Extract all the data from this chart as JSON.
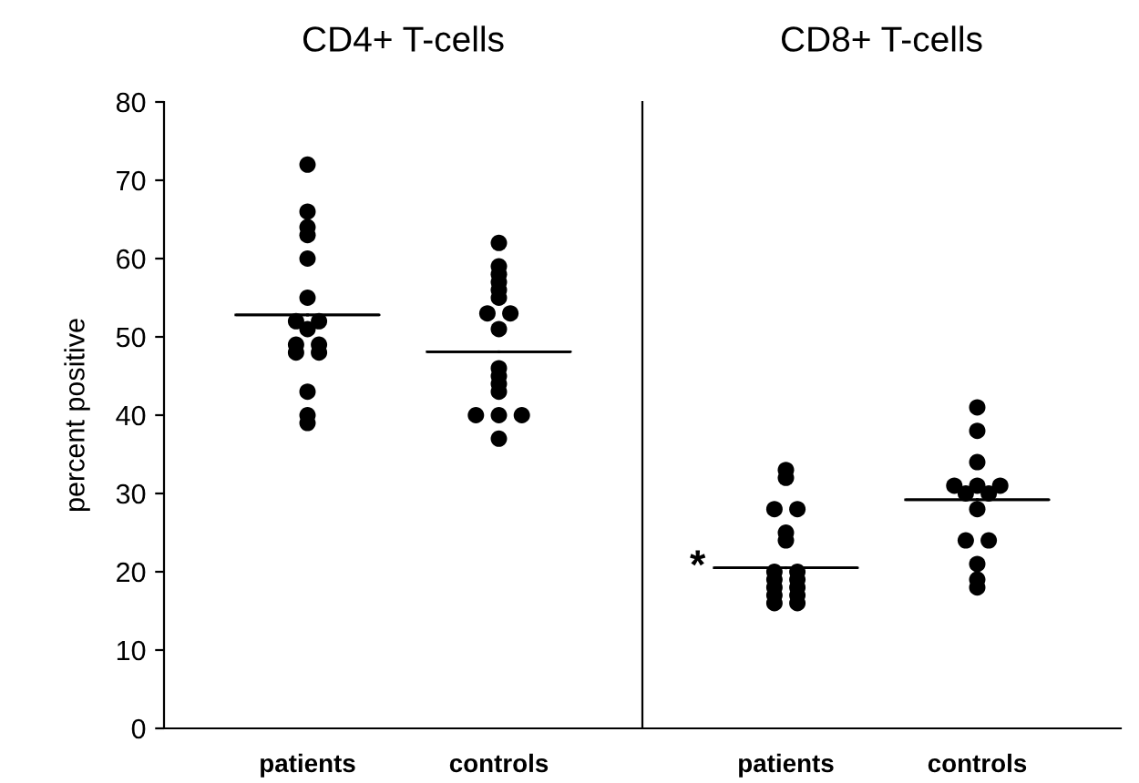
{
  "chart_data": [
    {
      "type": "scatter",
      "title": "CD4+ T-cells",
      "ylabel": "percent positive",
      "categories": [
        "patients",
        "controls"
      ],
      "ylim": [
        0,
        80
      ],
      "yticks": [
        0,
        10,
        20,
        30,
        40,
        50,
        60,
        70,
        80
      ],
      "marker": "circle",
      "series": [
        {
          "x": [
            "patients",
            "patients",
            "patients",
            "patients",
            "patients",
            "patients",
            "patients",
            "patients",
            "patients",
            "patients",
            "patients",
            "patients",
            "patients",
            "patients",
            "patients",
            "patients"
          ],
          "color": "#000000",
          "values": [
            72,
            66,
            64,
            63,
            60,
            55,
            52,
            52,
            51,
            49,
            49,
            48,
            48,
            43,
            40,
            39
          ]
        },
        {
          "x": [
            "controls",
            "controls",
            "controls",
            "controls",
            "controls",
            "controls",
            "controls",
            "controls",
            "controls",
            "controls",
            "controls",
            "controls",
            "controls",
            "controls",
            "controls",
            "controls",
            "controls"
          ],
          "color": "#000000",
          "values": [
            62,
            59,
            58,
            57,
            56,
            55,
            53,
            53,
            51,
            46,
            45,
            44,
            43,
            40,
            40,
            40,
            37
          ]
        },
        {
          "type": "box",
          "color": "#000000",
          "boxes": [
            {
              "low": 52.8,
              "q1": 52.8,
              "median": 52.8,
              "q3": 52.8,
              "high": 52.8
            },
            {
              "low": 48.1,
              "q1": 48.1,
              "median": 48.1,
              "q3": 48.1,
              "high": 48.1
            }
          ]
        }
      ]
    },
    {
      "type": "scatter",
      "title": "CD8+ T-cells",
      "categories": [
        "patients",
        "controls"
      ],
      "ylim": [
        0,
        80
      ],
      "tick_labels": "x",
      "marker": "circle",
      "annotations": [
        {
          "text": "*",
          "x": "patients",
          "y": 20.5
        }
      ],
      "series": [
        {
          "x": [
            "patients",
            "patients",
            "patients",
            "patients",
            "patients",
            "patients",
            "patients",
            "patients",
            "patients",
            "patients",
            "patients",
            "patients",
            "patients",
            "patients",
            "patients",
            "patients"
          ],
          "color": "#000000",
          "values": [
            33,
            32,
            28,
            28,
            25,
            24,
            20,
            20,
            19,
            19,
            18,
            18,
            17,
            17,
            16,
            16
          ]
        },
        {
          "x": [
            "controls",
            "controls",
            "controls",
            "controls",
            "controls",
            "controls",
            "controls",
            "controls",
            "controls",
            "controls",
            "controls",
            "controls",
            "controls",
            "controls"
          ],
          "color": "#000000",
          "values": [
            41,
            38,
            34,
            31,
            31,
            31,
            30,
            30,
            28,
            24,
            24,
            21,
            19,
            18
          ]
        },
        {
          "type": "box",
          "color": "#000000",
          "boxes": [
            {
              "low": 20.5,
              "q1": 20.5,
              "median": 20.5,
              "q3": 20.5,
              "high": 20.5
            },
            {
              "low": 29.2,
              "q1": 29.2,
              "median": 29.2,
              "q3": 29.2,
              "high": 29.2
            }
          ]
        }
      ]
    }
  ]
}
